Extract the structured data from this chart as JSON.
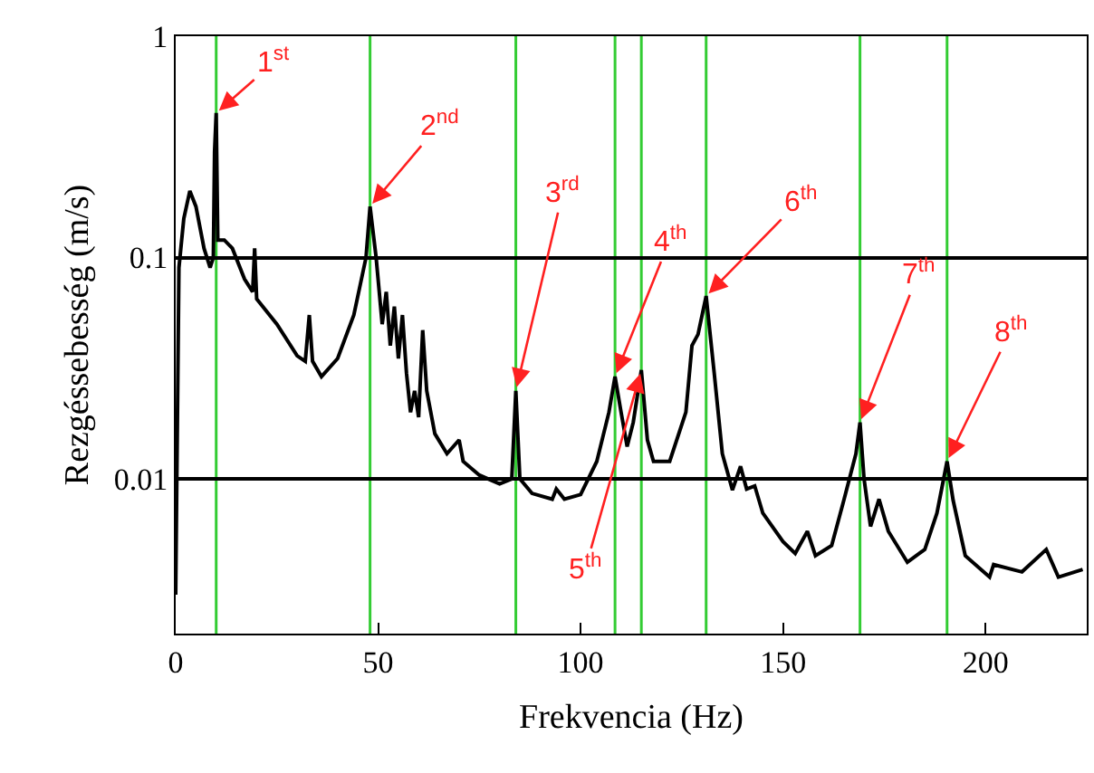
{
  "chart_data": {
    "type": "line",
    "xlabel": "Frekvencia (Hz)",
    "ylabel": "Rezgéssebesség (m/s)",
    "log": "y",
    "grid": "y",
    "marker": "none",
    "line_style": "solid",
    "xlim": [
      0,
      225
    ],
    "xticks": [
      0,
      50,
      100,
      150,
      200
    ],
    "ylim": [
      0.002,
      1
    ],
    "yticks": [
      1,
      0.1,
      0.01
    ],
    "series": [
      {
        "color": "#000000",
        "x": [
          0,
          0.8,
          2,
          3.5,
          5,
          7,
          8.5,
          9.3,
          9.6,
          10,
          10.4,
          12,
          14,
          17,
          19,
          19.5,
          20,
          25,
          30,
          32,
          33,
          33.8,
          36,
          40,
          44,
          47,
          48,
          49.5,
          51,
          52,
          53,
          54,
          55,
          56,
          57,
          58,
          59,
          60,
          61,
          62,
          64,
          67,
          70,
          71,
          75,
          80,
          83,
          84,
          85,
          88,
          93,
          94,
          96,
          100,
          104,
          107,
          108.5,
          110,
          111.5,
          113,
          115,
          116.5,
          118,
          122,
          126,
          127.5,
          129,
          131,
          133,
          135,
          137.5,
          139.5,
          141,
          143,
          145,
          150,
          153,
          156,
          158,
          162,
          165,
          168,
          169,
          170,
          171.6,
          173.7,
          176,
          180.7,
          185,
          188,
          190.5,
          192,
          195,
          201,
          202,
          209,
          215,
          218,
          224
        ],
        "values": [
          0.003,
          0.09,
          0.15,
          0.2,
          0.17,
          0.11,
          0.09,
          0.1,
          0.3,
          0.45,
          0.12,
          0.12,
          0.11,
          0.08,
          0.07,
          0.11,
          0.065,
          0.05,
          0.036,
          0.034,
          0.055,
          0.034,
          0.029,
          0.035,
          0.055,
          0.1,
          0.17,
          0.1,
          0.05,
          0.07,
          0.04,
          0.06,
          0.035,
          0.055,
          0.03,
          0.02,
          0.025,
          0.019,
          0.047,
          0.025,
          0.016,
          0.013,
          0.015,
          0.012,
          0.0104,
          0.0095,
          0.01,
          0.025,
          0.01,
          0.0086,
          0.0081,
          0.009,
          0.0081,
          0.0085,
          0.012,
          0.02,
          0.029,
          0.02,
          0.014,
          0.018,
          0.031,
          0.015,
          0.012,
          0.012,
          0.02,
          0.04,
          0.045,
          0.067,
          0.03,
          0.013,
          0.0089,
          0.0114,
          0.009,
          0.0093,
          0.007,
          0.0052,
          0.0046,
          0.0058,
          0.0045,
          0.005,
          0.008,
          0.013,
          0.018,
          0.01,
          0.0061,
          0.0081,
          0.0058,
          0.0042,
          0.0048,
          0.007,
          0.012,
          0.008,
          0.0045,
          0.0036,
          0.0041,
          0.0038,
          0.0048,
          0.0036,
          0.0039
        ]
      }
    ],
    "ref_lines": [
      {
        "axis": "x",
        "value": 10,
        "color": "#33cc33"
      },
      {
        "axis": "x",
        "value": 48,
        "color": "#33cc33"
      },
      {
        "axis": "x",
        "value": 84,
        "color": "#33cc33"
      },
      {
        "axis": "x",
        "value": 108.5,
        "color": "#33cc33"
      },
      {
        "axis": "x",
        "value": 115,
        "color": "#33cc33"
      },
      {
        "axis": "x",
        "value": 131,
        "color": "#33cc33"
      },
      {
        "axis": "x",
        "value": 169,
        "color": "#33cc33"
      },
      {
        "axis": "x",
        "value": 190.5,
        "color": "#33cc33"
      }
    ],
    "annotations": [
      {
        "text": "1$^{st}$",
        "x": 10,
        "y": 0.45
      },
      {
        "text": "2$^{nd}$",
        "x": 48,
        "y": 0.17
      },
      {
        "text": "3$^{rd}$",
        "x": 84,
        "y": 0.025
      },
      {
        "text": "4$^{th}$",
        "x": 108.5,
        "y": 0.029
      },
      {
        "text": "5$^{th}$",
        "x": 115,
        "y": 0.031
      },
      {
        "text": "6$^{th}$",
        "x": 131,
        "y": 0.067
      },
      {
        "text": "7$^{th}$",
        "x": 169,
        "y": 0.018
      },
      {
        "text": "8$^{th}$",
        "x": 190.5,
        "y": 0.012
      }
    ]
  }
}
